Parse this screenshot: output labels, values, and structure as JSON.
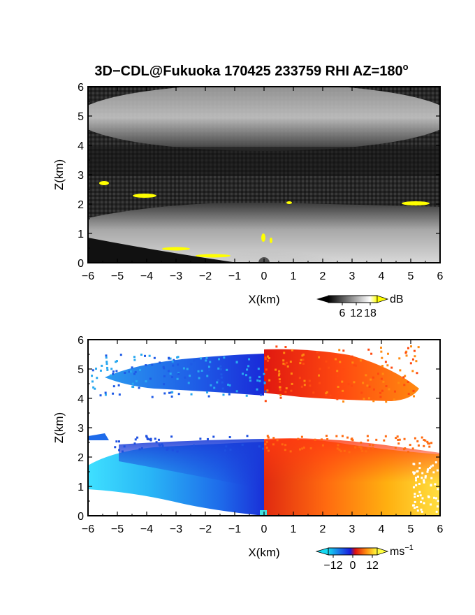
{
  "figure": {
    "title_main": "3D−CDL@Fukuoka 170425 233759 RHI AZ=180",
    "title_deg": "o"
  },
  "chart_data": [
    {
      "type": "heatmap",
      "quantity": "backscatter intensity",
      "xlabel": "X(km)",
      "ylabel": "Z(km)",
      "xlim": [
        -6,
        6
      ],
      "ylim": [
        0,
        6
      ],
      "x_ticks": [
        "−6",
        "−5",
        "−4",
        "−3",
        "−2",
        "−1",
        "0",
        "1",
        "2",
        "3",
        "4",
        "5",
        "6"
      ],
      "y_ticks": [
        "0",
        "1",
        "2",
        "3",
        "4",
        "5",
        "6"
      ],
      "colorbar": {
        "unit": "dB",
        "ticks": [
          "6",
          "12",
          "18"
        ],
        "range": [
          0,
          21
        ],
        "colors": [
          "#000000",
          "#ffffff",
          "#ffff00"
        ]
      },
      "layers": [
        {
          "name": "upper cloud",
          "x_range": [
            -6,
            6
          ],
          "z_range": [
            3.9,
            6.0
          ]
        },
        {
          "name": "boundary layer",
          "x_range": [
            -6,
            6
          ],
          "z_range": [
            0,
            2.3
          ]
        },
        {
          "name": "layer near 2.7 km",
          "x_range": [
            -6,
            -5.5
          ],
          "z_range": [
            2.6,
            2.8
          ]
        }
      ]
    },
    {
      "type": "heatmap",
      "quantity": "Doppler velocity",
      "xlabel": "X(km)",
      "ylabel": "Z(km)",
      "xlim": [
        -6,
        6
      ],
      "ylim": [
        0,
        6
      ],
      "x_ticks": [
        "−6",
        "−5",
        "−4",
        "−3",
        "−2",
        "−1",
        "0",
        "1",
        "2",
        "3",
        "4",
        "5",
        "6"
      ],
      "y_ticks": [
        "0",
        "1",
        "2",
        "3",
        "4",
        "5",
        "6"
      ],
      "colorbar": {
        "unit": "ms",
        "unit_exp": "−1",
        "ticks": [
          "−12",
          "0",
          "12"
        ],
        "range": [
          -15,
          15
        ],
        "colors": [
          "#14d8f0",
          "#1a4ae8",
          "#1a1adc",
          "#e01010",
          "#ff9010",
          "#ffff40"
        ]
      },
      "layers": [
        {
          "name": "upper cloud",
          "x_range": [
            -5.9,
            5.1
          ],
          "z_range": [
            4.0,
            6.0
          ]
        },
        {
          "name": "boundary layer",
          "x_range": [
            -6,
            6
          ],
          "z_range": [
            0,
            2.6
          ]
        },
        {
          "name": "layer near 2.7 km",
          "x_range": [
            -6,
            -5.3
          ],
          "z_range": [
            2.6,
            2.85
          ]
        }
      ]
    }
  ]
}
